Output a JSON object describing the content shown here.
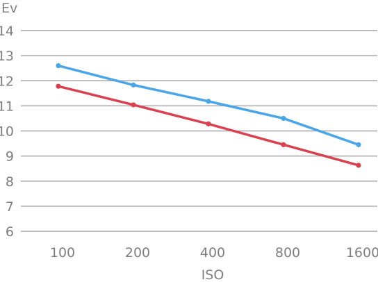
{
  "chart_data": {
    "type": "line",
    "title": "",
    "xlabel": "ISO",
    "ylabel": "Ev",
    "categories": [
      "100",
      "200",
      "400",
      "800",
      "1600"
    ],
    "ylim": [
      6,
      14
    ],
    "yticks": [
      6,
      7,
      8,
      9,
      10,
      11,
      12,
      13,
      14
    ],
    "grid": true,
    "legend": "none",
    "series": [
      {
        "color": "#4aa6e8",
        "values": [
          12.6,
          11.83,
          11.18,
          10.5,
          9.45
        ]
      },
      {
        "color": "#d9414f",
        "values": [
          11.78,
          11.04,
          10.28,
          9.45,
          8.63
        ]
      }
    ]
  }
}
